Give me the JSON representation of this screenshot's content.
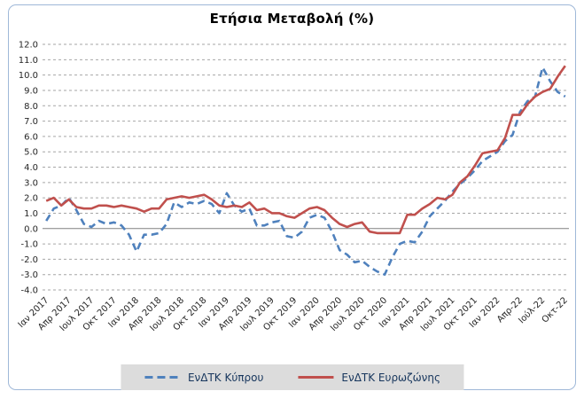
{
  "chart": {
    "title": "Ετήσια Μεταβολή (%)"
  },
  "legend": {
    "items": [
      {
        "label": "ΕνΔΤΚ Κύπρου",
        "color": "#4F81BD",
        "line_style": "dashed"
      },
      {
        "label": "ΕνΔΤΚ Ευρωζώνης",
        "color": "#C0504D",
        "line_style": "solid"
      }
    ],
    "background": "#DCDCDC",
    "position": "bottom"
  },
  "frame": {
    "border_color": "#9FB8D8",
    "background": "#FFFFFF"
  },
  "chart_data": {
    "type": "line",
    "title": "Ετήσια Μεταβολή (%)",
    "frequency": "monthly",
    "x_start": "Ιαν 2017",
    "x_end": "Οκτ-22",
    "points_per_tick": 3,
    "x_tick_labels": [
      "Ιαν 2017",
      "Απρ 2017",
      "Ιουλ 2017",
      "Οκτ 2017",
      "Ιαν 2018",
      "Απρ 2018",
      "Ιουλ 2018",
      "Οκτ 2018",
      "Ιαν 2019",
      "Απρ 2019",
      "Ιουλ 2019",
      "Οκτ 2019",
      "Ιαν 2020",
      "Απρ 2020",
      "Ιουλ 2020",
      "Οκτ 2020",
      "Ιαν 2021",
      "Απρ 2021",
      "Ιουλ 2021",
      "Οκτ 2021",
      "Ιαν 2022",
      "Απρ-22",
      "Ιούλ-22",
      "Οκτ-22"
    ],
    "ylim": [
      -4.0,
      12.0
    ],
    "y_tick_step": 1.0,
    "y_tick_labels": [
      "12.0",
      "11.0",
      "10.0",
      "9.0",
      "8.0",
      "7.0",
      "6.0",
      "5.0",
      "4.0",
      "3.0",
      "2.0",
      "1.0",
      "0.0",
      "-1.0",
      "-2.0",
      "-3.0",
      "-4.0"
    ],
    "grid": {
      "horizontal": "dashed",
      "zero_line": "solid",
      "gridline_color": "#A6A6A6",
      "zero_line_color": "#808080"
    },
    "legend_position": "bottom",
    "series": [
      {
        "name": "ΕνΔΤΚ Κύπρου",
        "color": "#4F81BD",
        "line_style": "dashed",
        "values": [
          0.5,
          1.3,
          1.5,
          2.0,
          1.2,
          0.3,
          0.1,
          0.5,
          0.3,
          0.4,
          0.2,
          -0.4,
          -1.5,
          -0.4,
          -0.4,
          -0.3,
          0.3,
          1.7,
          1.4,
          1.7,
          1.6,
          1.8,
          1.6,
          1.0,
          2.3,
          1.5,
          1.1,
          1.3,
          0.2,
          0.2,
          0.4,
          0.5,
          -0.5,
          -0.6,
          -0.2,
          0.7,
          0.9,
          0.7,
          -0.2,
          -1.4,
          -1.7,
          -2.2,
          -2.1,
          -2.5,
          -2.8,
          -3.0,
          -1.9,
          -1.0,
          -0.8,
          -0.9,
          -0.2,
          0.8,
          1.3,
          1.8,
          2.4,
          2.9,
          3.3,
          3.8,
          4.4,
          4.7,
          5.0,
          5.7,
          6.1,
          7.6,
          8.3,
          8.6,
          10.5,
          9.6,
          8.9,
          8.6
        ]
      },
      {
        "name": "ΕνΔΤΚ Ευρωζώνης",
        "color": "#C0504D",
        "line_style": "solid",
        "values": [
          1.8,
          2.0,
          1.5,
          1.9,
          1.4,
          1.3,
          1.3,
          1.5,
          1.5,
          1.4,
          1.5,
          1.4,
          1.3,
          1.1,
          1.3,
          1.3,
          1.9,
          2.0,
          2.1,
          2.0,
          2.1,
          2.2,
          1.9,
          1.5,
          1.4,
          1.5,
          1.4,
          1.7,
          1.2,
          1.3,
          1.0,
          1.0,
          0.8,
          0.7,
          1.0,
          1.3,
          1.4,
          1.2,
          0.7,
          0.3,
          0.1,
          0.3,
          0.4,
          -0.2,
          -0.3,
          -0.3,
          -0.3,
          -0.3,
          0.9,
          0.9,
          1.3,
          1.6,
          2.0,
          1.9,
          2.2,
          3.0,
          3.4,
          4.1,
          4.9,
          5.0,
          5.1,
          5.9,
          7.4,
          7.4,
          8.1,
          8.6,
          8.9,
          9.1,
          9.9,
          10.6
        ]
      }
    ]
  }
}
